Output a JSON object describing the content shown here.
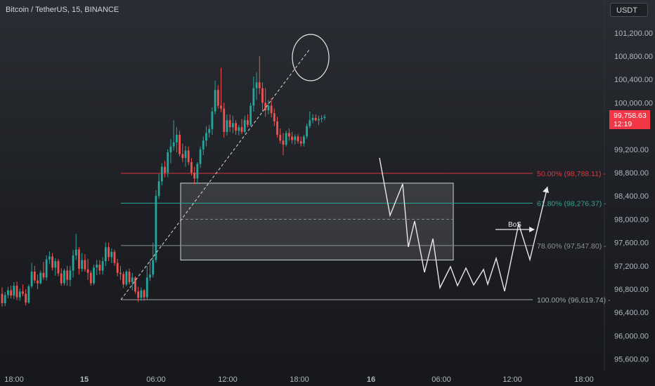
{
  "header": {
    "title": "Bitcoin / TetherUS, 15, BINANCE",
    "currency_button": "USDT"
  },
  "price_tag": {
    "price": "99,758.63",
    "countdown": "12:19"
  },
  "colors": {
    "up": "#26a69a",
    "down": "#ef5350",
    "fib_50": "#e0353f",
    "fib_618": "#2ea394",
    "fib_786": "#8d8f96",
    "fib_100": "#9ea1a8",
    "zone_fill": "#ffffff",
    "projection": "#e8e8e8",
    "price_tag_bg": "#f23645"
  },
  "chart_data": {
    "type": "candlestick",
    "y_axis": {
      "range": [
        95400,
        101400
      ],
      "ticks": [
        "101,200.00",
        "100,800.00",
        "100,400.00",
        "100,000.00",
        "99,200.00",
        "98,800.00",
        "98,400.00",
        "98,000.00",
        "97,600.00",
        "97,200.00",
        "96,800.00",
        "96,400.00",
        "96,000.00",
        "95,600.00"
      ]
    },
    "x_axis": {
      "ticks": [
        "18:00",
        "15",
        "06:00",
        "12:00",
        "18:00",
        "16",
        "06:00",
        "12:00",
        "18:00"
      ],
      "bold_ticks": [
        "15",
        "16"
      ]
    },
    "fib_levels": [
      {
        "ratio": "50.00%",
        "price": 98788.11,
        "label": "50.00% (98,788.11)"
      },
      {
        "ratio": "61.80%",
        "price": 98276.37,
        "label": "61.80% (98,276.37)"
      },
      {
        "ratio": "78.60%",
        "price": 97547.8,
        "label": "78.60% (97,547.80)"
      },
      {
        "ratio": "100.00%",
        "price": 96619.74,
        "label": "100.00% (96,619.74)"
      }
    ],
    "zone": {
      "top": 98620,
      "bottom": 97300,
      "mid": 98000
    },
    "annotations": {
      "bos_label": "BoS"
    },
    "candles": [
      {
        "o": 96720,
        "h": 96830,
        "l": 96500,
        "c": 96560
      },
      {
        "o": 96560,
        "h": 96750,
        "l": 96510,
        "c": 96700
      },
      {
        "o": 96700,
        "h": 96840,
        "l": 96640,
        "c": 96780
      },
      {
        "o": 96780,
        "h": 96860,
        "l": 96640,
        "c": 96690
      },
      {
        "o": 96690,
        "h": 96920,
        "l": 96630,
        "c": 96860
      },
      {
        "o": 96860,
        "h": 96930,
        "l": 96610,
        "c": 96660
      },
      {
        "o": 96660,
        "h": 96810,
        "l": 96600,
        "c": 96760
      },
      {
        "o": 96760,
        "h": 96880,
        "l": 96680,
        "c": 96720
      },
      {
        "o": 96720,
        "h": 96800,
        "l": 96520,
        "c": 96570
      },
      {
        "o": 96570,
        "h": 96880,
        "l": 96550,
        "c": 96850
      },
      {
        "o": 96850,
        "h": 97250,
        "l": 96820,
        "c": 97100
      },
      {
        "o": 97100,
        "h": 97200,
        "l": 96900,
        "c": 96950
      },
      {
        "o": 96950,
        "h": 97050,
        "l": 96800,
        "c": 96900
      },
      {
        "o": 96900,
        "h": 97120,
        "l": 96880,
        "c": 97080
      },
      {
        "o": 97080,
        "h": 97270,
        "l": 96960,
        "c": 97000
      },
      {
        "o": 97000,
        "h": 97380,
        "l": 96950,
        "c": 97310
      },
      {
        "o": 97310,
        "h": 97450,
        "l": 97230,
        "c": 97360
      },
      {
        "o": 97360,
        "h": 97420,
        "l": 97120,
        "c": 97170
      },
      {
        "o": 97170,
        "h": 97330,
        "l": 97030,
        "c": 97280
      },
      {
        "o": 97280,
        "h": 97320,
        "l": 97020,
        "c": 97070
      },
      {
        "o": 97070,
        "h": 97160,
        "l": 96860,
        "c": 96900
      },
      {
        "o": 96900,
        "h": 97150,
        "l": 96860,
        "c": 97120
      },
      {
        "o": 97120,
        "h": 97200,
        "l": 96860,
        "c": 96960
      },
      {
        "o": 96960,
        "h": 97200,
        "l": 96850,
        "c": 97120
      },
      {
        "o": 97120,
        "h": 97470,
        "l": 97000,
        "c": 97380
      },
      {
        "o": 97380,
        "h": 97750,
        "l": 97300,
        "c": 97480
      },
      {
        "o": 97480,
        "h": 97520,
        "l": 97050,
        "c": 97150
      },
      {
        "o": 97150,
        "h": 97420,
        "l": 97100,
        "c": 97300
      },
      {
        "o": 97300,
        "h": 97400,
        "l": 97100,
        "c": 97140
      },
      {
        "o": 97140,
        "h": 97320,
        "l": 96960,
        "c": 97080
      },
      {
        "o": 97080,
        "h": 97120,
        "l": 96860,
        "c": 96900
      },
      {
        "o": 96900,
        "h": 97220,
        "l": 96870,
        "c": 97170
      },
      {
        "o": 97170,
        "h": 97300,
        "l": 97040,
        "c": 97220
      },
      {
        "o": 97220,
        "h": 97300,
        "l": 97050,
        "c": 97120
      },
      {
        "o": 97120,
        "h": 97350,
        "l": 97050,
        "c": 97280
      },
      {
        "o": 97280,
        "h": 97600,
        "l": 97200,
        "c": 97520
      },
      {
        "o": 97520,
        "h": 97600,
        "l": 97280,
        "c": 97350
      },
      {
        "o": 97350,
        "h": 97500,
        "l": 97250,
        "c": 97440
      },
      {
        "o": 97440,
        "h": 97480,
        "l": 97200,
        "c": 97250
      },
      {
        "o": 97250,
        "h": 97320,
        "l": 97020,
        "c": 97080
      },
      {
        "o": 97080,
        "h": 97200,
        "l": 96960,
        "c": 97060
      },
      {
        "o": 97060,
        "h": 97100,
        "l": 96820,
        "c": 96880
      },
      {
        "o": 96880,
        "h": 97130,
        "l": 96850,
        "c": 97100
      },
      {
        "o": 97100,
        "h": 97150,
        "l": 96880,
        "c": 96920
      },
      {
        "o": 96920,
        "h": 97080,
        "l": 96780,
        "c": 97000
      },
      {
        "o": 97000,
        "h": 97020,
        "l": 96720,
        "c": 96760
      },
      {
        "o": 96760,
        "h": 96840,
        "l": 96580,
        "c": 96650
      },
      {
        "o": 96650,
        "h": 96830,
        "l": 96600,
        "c": 96780
      },
      {
        "o": 96780,
        "h": 96800,
        "l": 96600,
        "c": 96660
      },
      {
        "o": 96660,
        "h": 97200,
        "l": 96620,
        "c": 97000
      },
      {
        "o": 97000,
        "h": 97300,
        "l": 96940,
        "c": 97050
      },
      {
        "o": 97050,
        "h": 97600,
        "l": 97000,
        "c": 97300
      },
      {
        "o": 97300,
        "h": 98500,
        "l": 97260,
        "c": 98400
      },
      {
        "o": 98400,
        "h": 98780,
        "l": 98350,
        "c": 98650
      },
      {
        "o": 98650,
        "h": 98960,
        "l": 98580,
        "c": 98900
      },
      {
        "o": 98900,
        "h": 99000,
        "l": 98720,
        "c": 98800
      },
      {
        "o": 98800,
        "h": 99200,
        "l": 98720,
        "c": 99150
      },
      {
        "o": 99150,
        "h": 99380,
        "l": 98960,
        "c": 99250
      },
      {
        "o": 99250,
        "h": 99700,
        "l": 99180,
        "c": 99320
      },
      {
        "o": 99320,
        "h": 99580,
        "l": 99150,
        "c": 99450
      },
      {
        "o": 99450,
        "h": 99520,
        "l": 99080,
        "c": 99120
      },
      {
        "o": 99120,
        "h": 99300,
        "l": 98980,
        "c": 99050
      },
      {
        "o": 99050,
        "h": 99260,
        "l": 98900,
        "c": 99180
      },
      {
        "o": 99180,
        "h": 99250,
        "l": 98930,
        "c": 98980
      },
      {
        "o": 98980,
        "h": 99050,
        "l": 98750,
        "c": 98800
      },
      {
        "o": 98800,
        "h": 98900,
        "l": 98600,
        "c": 98700
      },
      {
        "o": 98700,
        "h": 98980,
        "l": 98600,
        "c": 98950
      },
      {
        "o": 98950,
        "h": 99250,
        "l": 98880,
        "c": 99200
      },
      {
        "o": 99200,
        "h": 99420,
        "l": 99100,
        "c": 99350
      },
      {
        "o": 99350,
        "h": 99600,
        "l": 99250,
        "c": 99480
      },
      {
        "o": 99480,
        "h": 99620,
        "l": 99400,
        "c": 99550
      },
      {
        "o": 99550,
        "h": 99920,
        "l": 99450,
        "c": 99850
      },
      {
        "o": 99850,
        "h": 100380,
        "l": 99800,
        "c": 100220
      },
      {
        "o": 100220,
        "h": 100300,
        "l": 99900,
        "c": 99950
      },
      {
        "o": 99950,
        "h": 100600,
        "l": 99840,
        "c": 99900
      },
      {
        "o": 99900,
        "h": 100000,
        "l": 99400,
        "c": 99500
      },
      {
        "o": 99500,
        "h": 99800,
        "l": 99440,
        "c": 99700
      },
      {
        "o": 99700,
        "h": 99800,
        "l": 99500,
        "c": 99580
      },
      {
        "o": 99580,
        "h": 99780,
        "l": 99480,
        "c": 99650
      },
      {
        "o": 99650,
        "h": 99700,
        "l": 99450,
        "c": 99520
      },
      {
        "o": 99520,
        "h": 99620,
        "l": 99440,
        "c": 99580
      },
      {
        "o": 99580,
        "h": 99720,
        "l": 99460,
        "c": 99500
      },
      {
        "o": 99500,
        "h": 99780,
        "l": 99480,
        "c": 99700
      },
      {
        "o": 99700,
        "h": 99800,
        "l": 99580,
        "c": 99620
      },
      {
        "o": 99620,
        "h": 100000,
        "l": 99600,
        "c": 99950
      },
      {
        "o": 99950,
        "h": 100450,
        "l": 99850,
        "c": 100250
      },
      {
        "o": 100250,
        "h": 100520,
        "l": 100050,
        "c": 100350
      },
      {
        "o": 100350,
        "h": 100800,
        "l": 100150,
        "c": 100250
      },
      {
        "o": 100250,
        "h": 100350,
        "l": 99850,
        "c": 100000
      },
      {
        "o": 100000,
        "h": 100250,
        "l": 99760,
        "c": 99870
      },
      {
        "o": 99870,
        "h": 100050,
        "l": 99800,
        "c": 99950
      },
      {
        "o": 99950,
        "h": 100080,
        "l": 99750,
        "c": 99820
      },
      {
        "o": 99820,
        "h": 99900,
        "l": 99600,
        "c": 99680
      },
      {
        "o": 99680,
        "h": 99760,
        "l": 99400,
        "c": 99450
      },
      {
        "o": 99450,
        "h": 99560,
        "l": 99300,
        "c": 99350
      },
      {
        "o": 99350,
        "h": 99480,
        "l": 99100,
        "c": 99280
      },
      {
        "o": 99280,
        "h": 99520,
        "l": 99250,
        "c": 99480
      },
      {
        "o": 99480,
        "h": 99560,
        "l": 99350,
        "c": 99420
      },
      {
        "o": 99420,
        "h": 99500,
        "l": 99300,
        "c": 99360
      },
      {
        "o": 99360,
        "h": 99460,
        "l": 99280,
        "c": 99420
      },
      {
        "o": 99420,
        "h": 99460,
        "l": 99300,
        "c": 99340
      },
      {
        "o": 99340,
        "h": 99420,
        "l": 99250,
        "c": 99300
      },
      {
        "o": 99300,
        "h": 99450,
        "l": 99250,
        "c": 99420
      },
      {
        "o": 99420,
        "h": 99640,
        "l": 99380,
        "c": 99600
      },
      {
        "o": 99600,
        "h": 99850,
        "l": 99560,
        "c": 99700
      },
      {
        "o": 99700,
        "h": 99800,
        "l": 99650,
        "c": 99740
      },
      {
        "o": 99740,
        "h": 99800,
        "l": 99680,
        "c": 99700
      },
      {
        "o": 99700,
        "h": 99780,
        "l": 99620,
        "c": 99720
      },
      {
        "o": 99720,
        "h": 99790,
        "l": 99660,
        "c": 99740
      },
      {
        "o": 99740,
        "h": 99800,
        "l": 99700,
        "c": 99760
      }
    ]
  }
}
